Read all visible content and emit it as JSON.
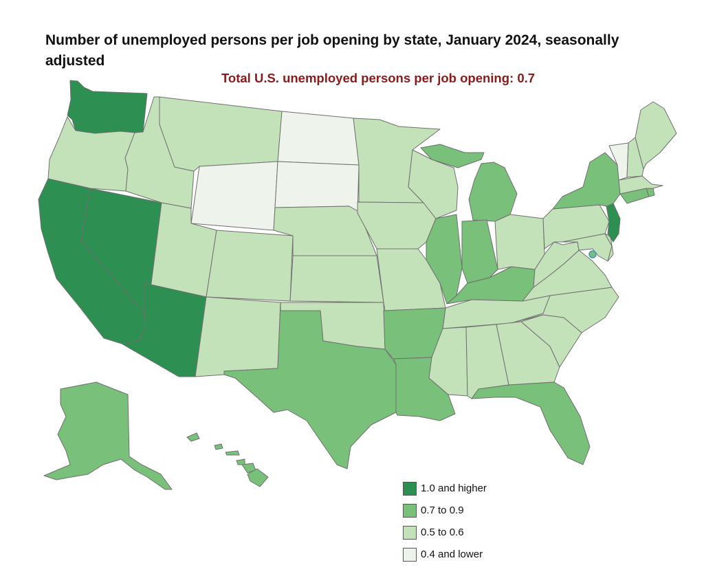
{
  "title": "Number of unemployed persons per job opening by state, January 2024, seasonally adjusted",
  "subtitle": "Total U.S. unemployed persons per job opening: 0.7",
  "colors": {
    "cat_1_0_and_higher": "#2d8f52",
    "cat_0_7_to_0_9": "#79c07a",
    "cat_0_5_to_0_6": "#c4e2b9",
    "cat_0_4_and_lower": "#eef3ec"
  },
  "legend": [
    {
      "key": "cat_1_0_and_higher",
      "label": "1.0 and higher"
    },
    {
      "key": "cat_0_7_to_0_9",
      "label": "0.7 to 0.9"
    },
    {
      "key": "cat_0_5_to_0_6",
      "label": "0.5 to 0.6"
    },
    {
      "key": "cat_0_4_and_lower",
      "label": "0.4 and lower"
    }
  ],
  "states": {
    "WA": "cat_1_0_and_higher",
    "CA": "cat_1_0_and_higher",
    "NV": "cat_1_0_and_higher",
    "AZ": "cat_1_0_and_higher",
    "NJ": "cat_1_0_and_higher",
    "TX": "cat_0_7_to_0_9",
    "AR": "cat_0_7_to_0_9",
    "LA": "cat_0_7_to_0_9",
    "FL": "cat_0_7_to_0_9",
    "IL": "cat_0_7_to_0_9",
    "IN": "cat_0_7_to_0_9",
    "KY": "cat_0_7_to_0_9",
    "MI": "cat_0_7_to_0_9",
    "NY": "cat_0_7_to_0_9",
    "CT": "cat_0_7_to_0_9",
    "RI": "cat_0_7_to_0_9",
    "AK": "cat_0_7_to_0_9",
    "HI": "cat_0_7_to_0_9",
    "DC": "cat_0_7_to_0_9",
    "OR": "cat_0_5_to_0_6",
    "ID": "cat_0_5_to_0_6",
    "MT": "cat_0_5_to_0_6",
    "UT": "cat_0_5_to_0_6",
    "CO": "cat_0_5_to_0_6",
    "NM": "cat_0_5_to_0_6",
    "NE": "cat_0_5_to_0_6",
    "KS": "cat_0_5_to_0_6",
    "OK": "cat_0_5_to_0_6",
    "MN": "cat_0_5_to_0_6",
    "IA": "cat_0_5_to_0_6",
    "MO": "cat_0_5_to_0_6",
    "WI": "cat_0_5_to_0_6",
    "OH": "cat_0_5_to_0_6",
    "WV": "cat_0_5_to_0_6",
    "VA": "cat_0_5_to_0_6",
    "NC": "cat_0_5_to_0_6",
    "SC": "cat_0_5_to_0_6",
    "GA": "cat_0_5_to_0_6",
    "AL": "cat_0_5_to_0_6",
    "MS": "cat_0_5_to_0_6",
    "TN": "cat_0_5_to_0_6",
    "PA": "cat_0_5_to_0_6",
    "MD": "cat_0_5_to_0_6",
    "ME": "cat_0_5_to_0_6",
    "NH": "cat_0_5_to_0_6",
    "MA": "cat_0_5_to_0_6",
    "DE": "cat_0_5_to_0_6",
    "ND": "cat_0_4_and_lower",
    "SD": "cat_0_4_and_lower",
    "WY": "cat_0_4_and_lower",
    "VT": "cat_0_4_and_lower"
  }
}
